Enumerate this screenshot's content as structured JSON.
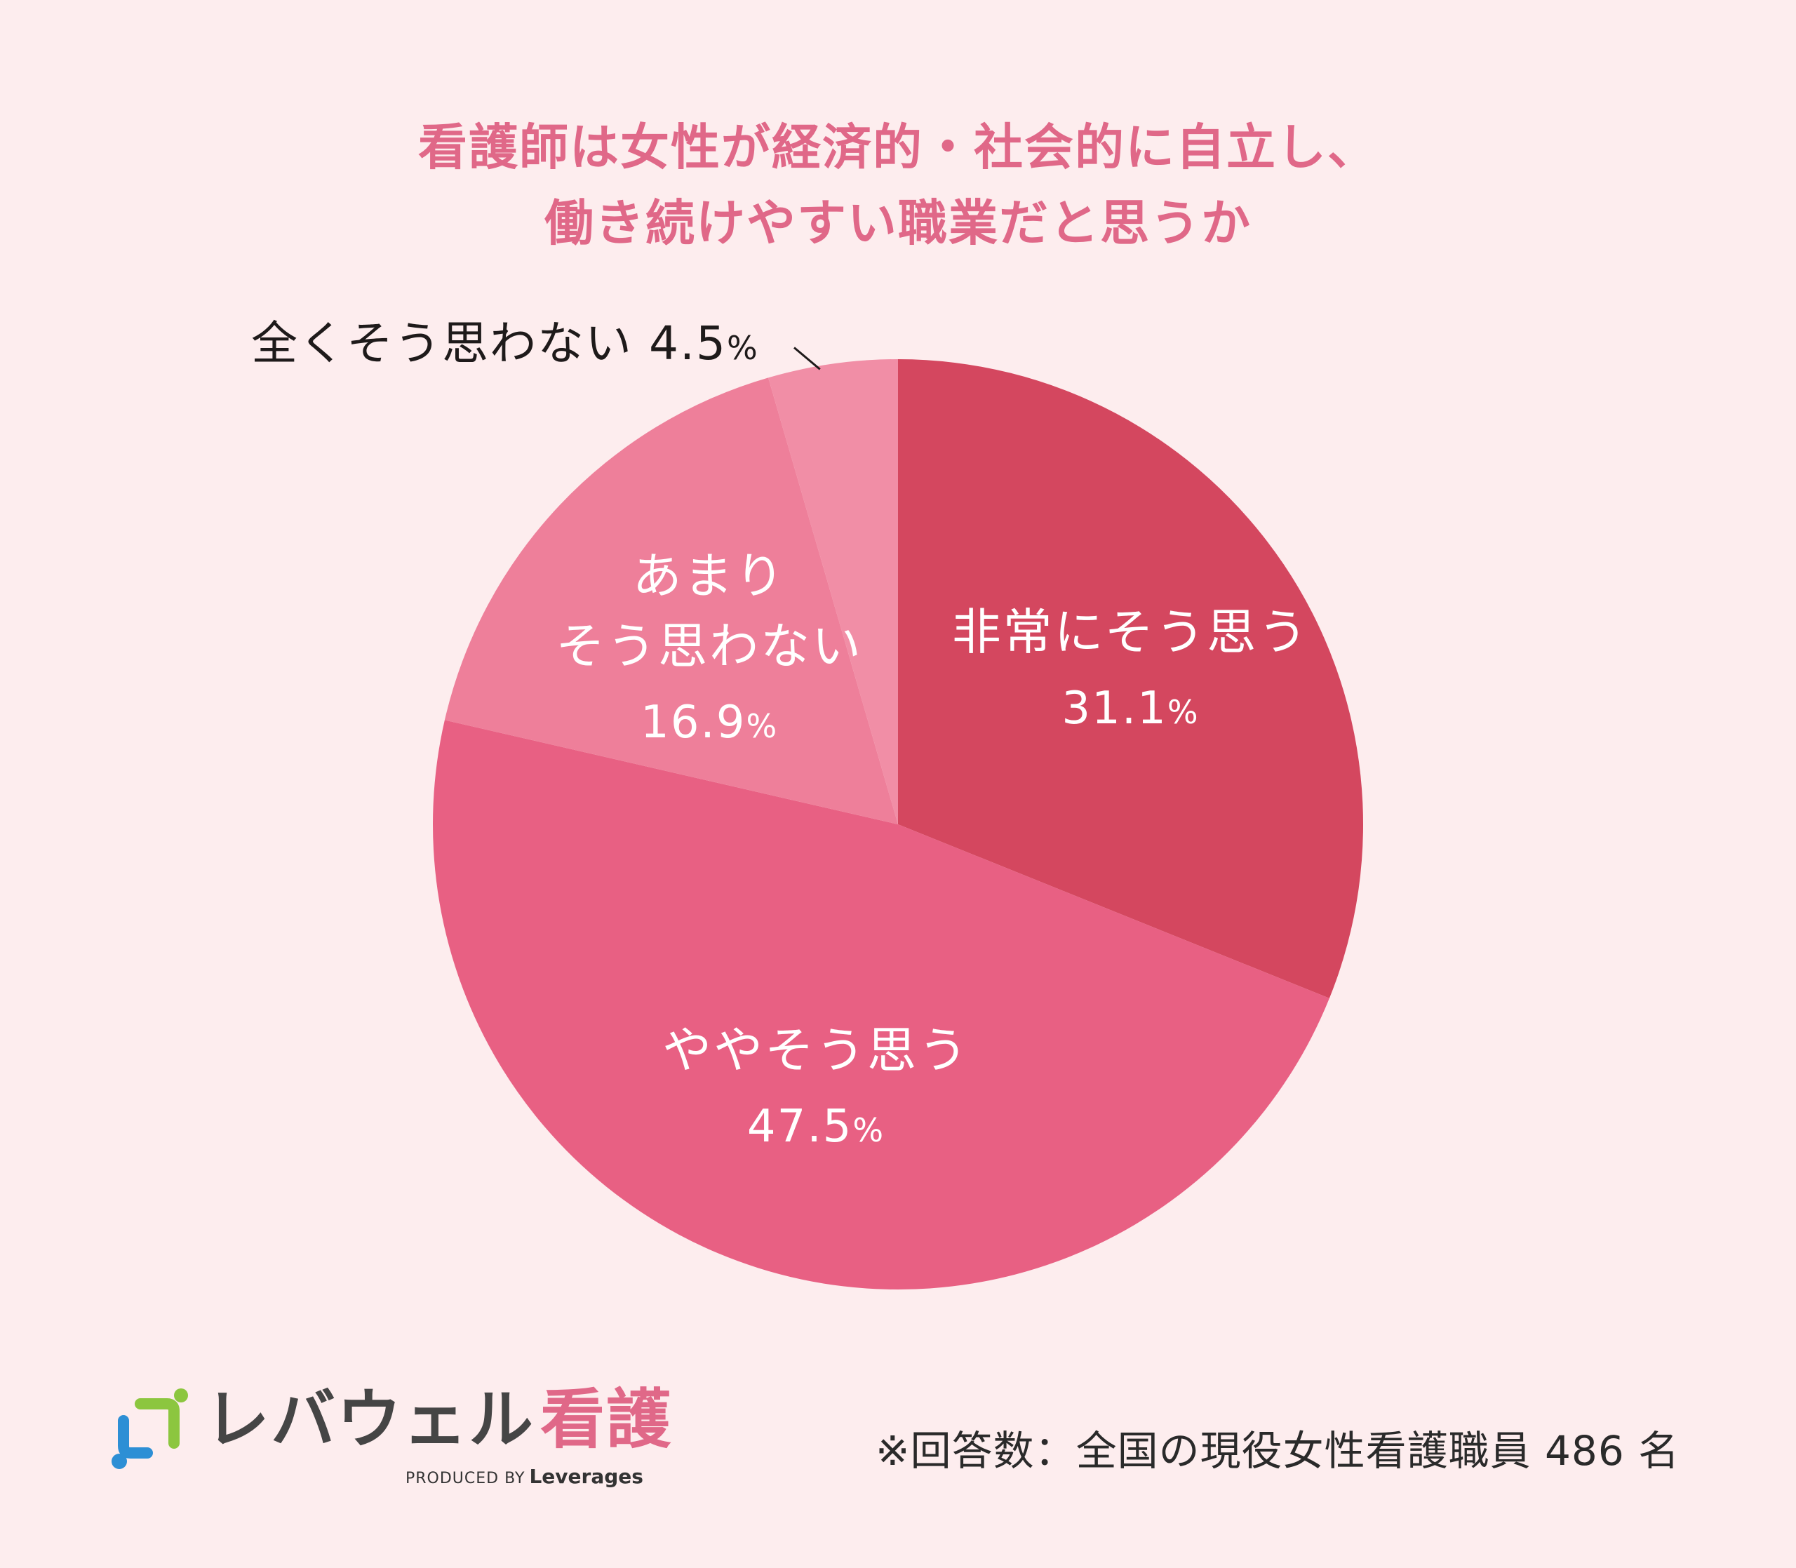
{
  "title": {
    "line1": "看護師は女性が経済的・社会的に自立し、",
    "line2": "働き続けやすい職業だと思うか"
  },
  "chart_data": {
    "type": "pie",
    "start_angle_deg": 0,
    "direction": "clockwise",
    "unit": "%",
    "slices": [
      {
        "label": "非常にそう思う",
        "label_lines": [
          "非常にそう思う"
        ],
        "value": 31.1,
        "value_text": "31.1",
        "color": "#d4475f",
        "label_position": "inside"
      },
      {
        "label": "ややそう思う",
        "label_lines": [
          "ややそう思う"
        ],
        "value": 47.5,
        "value_text": "47.5",
        "color": "#e86083",
        "label_position": "inside"
      },
      {
        "label": "あまりそう思わない",
        "label_lines": [
          "あまり",
          "そう思わない"
        ],
        "value": 16.9,
        "value_text": "16.9",
        "color": "#ee7f9a",
        "label_position": "inside"
      },
      {
        "label": "全くそう思わない",
        "label_lines": [
          "全くそう思わない"
        ],
        "value": 4.5,
        "value_text": "4.5",
        "color": "#f18ea6",
        "label_position": "outside"
      }
    ]
  },
  "outside_label": {
    "text": "全くそう思わない 4.5",
    "unit": "%"
  },
  "logo": {
    "brand": "レバウェル",
    "kango": "看護",
    "produced_by": "PRODUCED BY",
    "company": "Leverages"
  },
  "footnote": "※回答数：全国の現役女性看護職員 486 名",
  "colors": {
    "background": "#fdedee",
    "title": "#e06888",
    "label_text": "#ffffff",
    "logo_green": "#8cc63f",
    "logo_blue": "#2d8fd5"
  }
}
